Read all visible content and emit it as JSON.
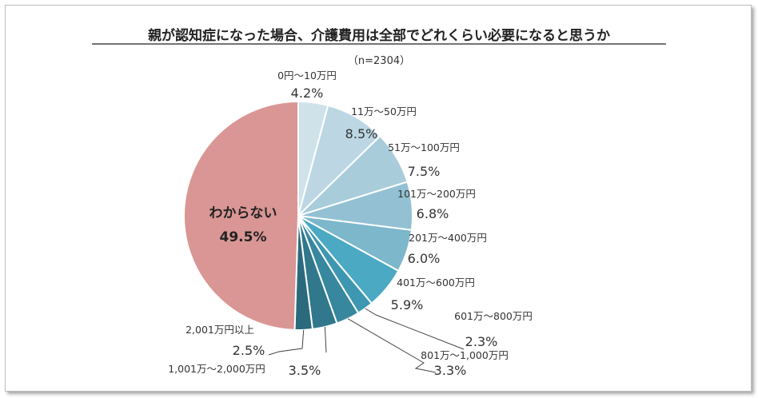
{
  "chart_data": {
    "type": "pie",
    "title": "親が認知症になった場合、介護費用は全部でどれくらい必要になると思うか",
    "subtitle": "（n=2304）",
    "unit": "%",
    "slices": [
      {
        "label": "0円～10万円",
        "value": 4.2,
        "value_label": "4.2%",
        "color": "#cfe2ea"
      },
      {
        "label": "11万～50万円",
        "value": 8.5,
        "value_label": "8.5%",
        "color": "#bcd7e3"
      },
      {
        "label": "51万～100万円",
        "value": 7.5,
        "value_label": "7.5%",
        "color": "#a9ccdb"
      },
      {
        "label": "101万～200万円",
        "value": 6.8,
        "value_label": "6.8%",
        "color": "#93c1d3"
      },
      {
        "label": "201万～400万円",
        "value": 6.0,
        "value_label": "6.0%",
        "color": "#7cb7cc"
      },
      {
        "label": "401万～600万円",
        "value": 5.9,
        "value_label": "5.9%",
        "color": "#4ba9c4"
      },
      {
        "label": "601万～800万円",
        "value": 2.3,
        "value_label": "2.3%",
        "color": "#3d97b0"
      },
      {
        "label": "801万～1,000万円",
        "value": 3.3,
        "value_label": "3.3%",
        "color": "#37879e"
      },
      {
        "label": "1,001万～2,000万円",
        "value": 3.5,
        "value_label": "3.5%",
        "color": "#31788c"
      },
      {
        "label": "2,001万円以上",
        "value": 2.5,
        "value_label": "2.5%",
        "color": "#2b6a7c"
      },
      {
        "label": "わからない",
        "value": 49.5,
        "value_label": "49.5%",
        "color": "#d99694"
      }
    ]
  }
}
